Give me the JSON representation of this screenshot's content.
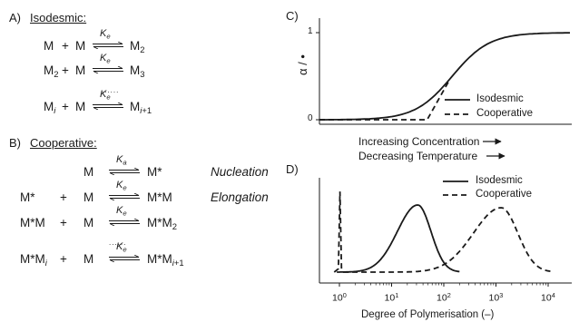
{
  "panelA": {
    "tag": "A)",
    "title": "Isodesmic:",
    "rows": [
      {
        "lhs": "M",
        "op": "+",
        "rhs": "M",
        "k": "Ke",
        "prod": "M2"
      },
      {
        "lhs": "M2",
        "op": "+",
        "rhs": "M",
        "k": "Ke",
        "prod": "M3"
      },
      {
        "lhs": "Mi",
        "op": "+",
        "rhs": "M",
        "k": "Ke",
        "prod": "Mi+1"
      }
    ],
    "ellipsis": "......"
  },
  "panelB": {
    "tag": "B)",
    "title": "Cooperative:",
    "rows": [
      {
        "lhs": "",
        "op": "",
        "rhs": "M",
        "k": "Ka",
        "prod": "M*",
        "note": "Nucleation"
      },
      {
        "lhs": "M*",
        "op": "+",
        "rhs": "M",
        "k": "Ke",
        "prod": "M*M",
        "note": "Elongation"
      },
      {
        "lhs": "M*M",
        "op": "+",
        "rhs": "M",
        "k": "Ke",
        "prod": "M*M2",
        "note": ""
      },
      {
        "lhs": "M*Mi",
        "op": "+",
        "rhs": "M",
        "k": "Ke",
        "prod": "M*Mi+1",
        "note": ""
      }
    ],
    "ellipsis": "......"
  },
  "panelC": {
    "tag": "C)",
    "ylabel": "α / •",
    "yticks": [
      "0",
      "1"
    ],
    "legend": [
      "Isodesmic",
      "Cooperative"
    ],
    "xlabel1": "Increasing Concentration",
    "xlabel2": "Decreasing Temperature"
  },
  "panelD": {
    "tag": "D)",
    "legend": [
      "Isodesmic",
      "Cooperative"
    ],
    "xlabel": "Degree of Polymerisation (–)",
    "xticks": [
      {
        "base": "10",
        "exp": "0"
      },
      {
        "base": "10",
        "exp": "1"
      },
      {
        "base": "10",
        "exp": "2"
      },
      {
        "base": "10",
        "exp": "3"
      },
      {
        "base": "10",
        "exp": "4"
      }
    ]
  },
  "chart_data": [
    {
      "type": "line",
      "title": "",
      "ylabel": "α / •",
      "xlabel": "Increasing Concentration / Decreasing Temperature",
      "ylim": [
        0,
        1
      ],
      "series": [
        {
          "name": "Isodesmic",
          "style": "solid"
        },
        {
          "name": "Cooperative",
          "style": "dashed"
        }
      ]
    },
    {
      "type": "line",
      "title": "",
      "xlabel": "Degree of Polymerisation (–)",
      "xscale": "log",
      "xlim": [
        0.5,
        20000
      ],
      "xticks": [
        1,
        10,
        100,
        1000,
        10000
      ],
      "series": [
        {
          "name": "Isodesmic",
          "style": "solid",
          "peak_x": 30
        },
        {
          "name": "Cooperative",
          "style": "dashed",
          "peak_x": [
            1,
            1200
          ]
        }
      ]
    }
  ]
}
